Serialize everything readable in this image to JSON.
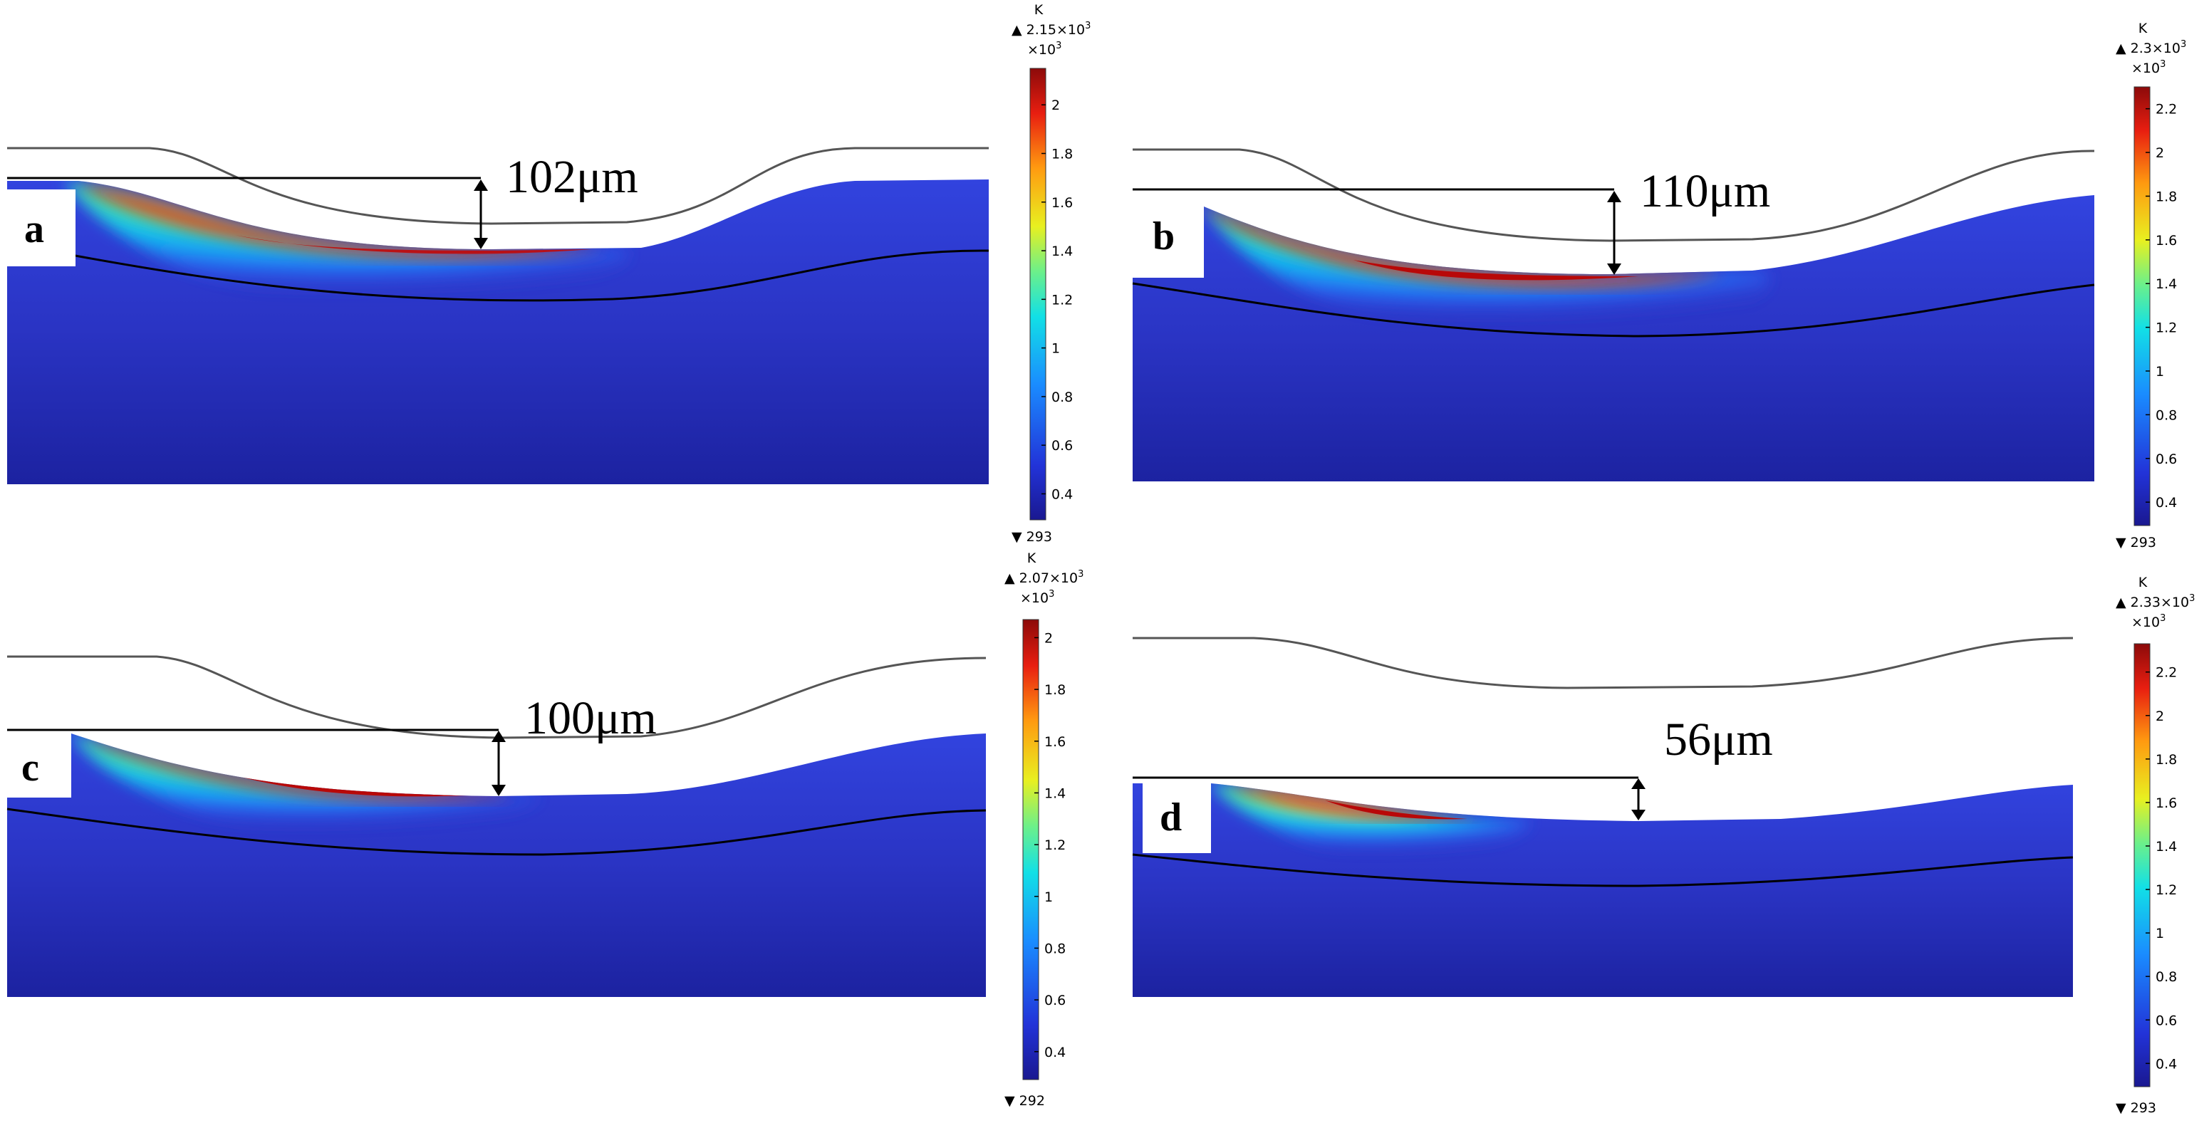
{
  "panels": [
    {
      "id": "a",
      "label": "a",
      "depth": "102μm",
      "colorbar": {
        "unit": "K",
        "max_mark": "▲ 2.15×10",
        "max_exp": "3",
        "scale": "×10",
        "scale_exp": "3",
        "ticks": [
          "2",
          "1.8",
          "1.6",
          "1.4",
          "1.2",
          "1",
          "0.8",
          "0.6",
          "0.4"
        ],
        "tick_values": [
          2.0,
          1.8,
          1.6,
          1.4,
          1.2,
          1.0,
          0.8,
          0.6,
          0.4
        ],
        "range": [
          0.293,
          2.15
        ],
        "min_mark": "▼ 293"
      }
    },
    {
      "id": "b",
      "label": "b",
      "depth": "110μm",
      "colorbar": {
        "unit": "K",
        "max_mark": "▲ 2.3×10",
        "max_exp": "3",
        "scale": "×10",
        "scale_exp": "3",
        "ticks": [
          "2.2",
          "2",
          "1.8",
          "1.6",
          "1.4",
          "1.2",
          "1",
          "0.8",
          "0.6",
          "0.4"
        ],
        "tick_values": [
          2.2,
          2.0,
          1.8,
          1.6,
          1.4,
          1.2,
          1.0,
          0.8,
          0.6,
          0.4
        ],
        "range": [
          0.293,
          2.3
        ],
        "min_mark": "▼ 293"
      }
    },
    {
      "id": "c",
      "label": "c",
      "depth": "100μm",
      "colorbar": {
        "unit": "K",
        "max_mark": "▲ 2.07×10",
        "max_exp": "3",
        "scale": "×10",
        "scale_exp": "3",
        "ticks": [
          "2",
          "1.8",
          "1.6",
          "1.4",
          "1.2",
          "1",
          "0.8",
          "0.6",
          "0.4"
        ],
        "tick_values": [
          2.0,
          1.8,
          1.6,
          1.4,
          1.2,
          1.0,
          0.8,
          0.6,
          0.4
        ],
        "range": [
          0.292,
          2.07
        ],
        "min_mark": "▼ 292"
      }
    },
    {
      "id": "d",
      "label": "d",
      "depth": "56μm",
      "colorbar": {
        "unit": "K",
        "max_mark": "▲ 2.33×10",
        "max_exp": "3",
        "scale": "×10",
        "scale_exp": "3",
        "ticks": [
          "2.2",
          "2",
          "1.8",
          "1.6",
          "1.4",
          "1.2",
          "1",
          "0.8",
          "0.6",
          "0.4"
        ],
        "tick_values": [
          2.2,
          2.0,
          1.8,
          1.6,
          1.4,
          1.2,
          1.0,
          0.8,
          0.6,
          0.4
        ],
        "range": [
          0.293,
          2.33
        ],
        "min_mark": "▼ 293"
      }
    }
  ],
  "colors": {
    "substrate": "#1e22a8",
    "substrate_light": "#3a4ee0",
    "outline": "#000000",
    "top_line": "#555555"
  }
}
